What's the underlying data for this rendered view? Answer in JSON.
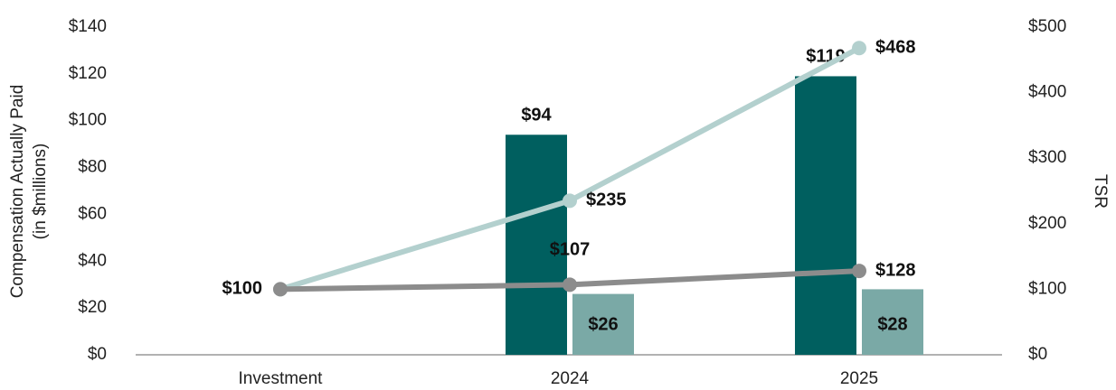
{
  "chart_data": {
    "type": "bar_line",
    "y_label": [
      "Compensation Actually Paid",
      "(in $millions)"
    ],
    "y2_label": "TSR",
    "categories": [
      "Investment",
      "2024",
      "2025"
    ],
    "series": [
      {
        "type": "bar",
        "color": "#005f5f",
        "values": [
          null,
          94,
          119
        ],
        "value_labels": [
          null,
          "$94",
          "$119"
        ]
      },
      {
        "type": "bar",
        "color": "#7aa9a6",
        "values": [
          null,
          26,
          28
        ],
        "value_labels": [
          null,
          "$26",
          "$28"
        ]
      },
      {
        "type": "line",
        "axis": "y2",
        "color": "#b3d0ce",
        "values": [
          100,
          235,
          468
        ],
        "value_labels": [
          "$100",
          "$235",
          "$468"
        ]
      },
      {
        "type": "line",
        "axis": "y2",
        "color": "#8c8c8c",
        "values": [
          100,
          107,
          128
        ],
        "value_labels": [
          null,
          "$107",
          "$128"
        ]
      }
    ],
    "ylim": [
      0,
      140
    ],
    "yticks": [
      {
        "value": 0,
        "label": "$0"
      },
      {
        "value": 20,
        "label": "$20"
      },
      {
        "value": 40,
        "label": "$40"
      },
      {
        "value": 60,
        "label": "$60"
      },
      {
        "value": 80,
        "label": "$80"
      },
      {
        "value": 100,
        "label": "$100"
      },
      {
        "value": 120,
        "label": "$120"
      },
      {
        "value": 140,
        "label": "$140"
      }
    ],
    "y2lim": [
      0,
      500
    ],
    "y2ticks": [
      {
        "value": 0,
        "label": "$0"
      },
      {
        "value": 100,
        "label": "$100"
      },
      {
        "value": 200,
        "label": "$200"
      },
      {
        "value": 300,
        "label": "$300"
      },
      {
        "value": 400,
        "label": "$400"
      },
      {
        "value": 500,
        "label": "$500"
      }
    ],
    "grid": false
  }
}
